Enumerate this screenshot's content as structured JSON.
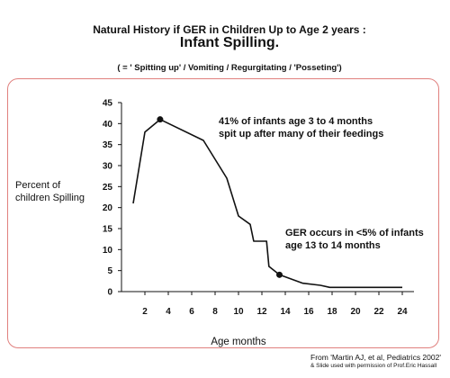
{
  "header": {
    "title_line1": "Natural History if GER in Children Up to Age 2 years :",
    "title_line2": "Infant Spilling.",
    "subtitle": "( = ' Spitting up' / Vomiting / Regurgitating / 'Posseting')"
  },
  "credit": {
    "line1": "From 'Martin AJ, et al, Pediatrics 2002'",
    "line2": "& Slide used with permission of Prof.Eric Hassall"
  },
  "chart_data": {
    "type": "line",
    "title": "",
    "ylabel_line1": "Percent of",
    "ylabel_line2": "children Spilling",
    "xlabel": "Age months",
    "xlim": [
      0,
      25
    ],
    "ylim": [
      0,
      45
    ],
    "xticks": [
      2,
      4,
      6,
      8,
      10,
      12,
      14,
      16,
      18,
      20,
      22,
      24
    ],
    "yticks": [
      0,
      5,
      10,
      15,
      20,
      25,
      30,
      35,
      40,
      45
    ],
    "grid": false,
    "series": [
      {
        "color": "#111111",
        "x": [
          1,
          2,
          3.3,
          7,
          9,
          10,
          11,
          11.3,
          12.4,
          12.6,
          13.5,
          15.5,
          17,
          17.8,
          20,
          24
        ],
        "y": [
          21,
          38,
          41,
          36,
          27,
          18,
          16,
          12,
          12,
          6,
          4,
          2,
          1.5,
          1,
          1,
          1
        ]
      }
    ],
    "highlight_points": [
      {
        "x": 3.3,
        "y": 41
      },
      {
        "x": 13.5,
        "y": 4
      }
    ],
    "annotations": [
      {
        "line1": "41% of infants age 3 to 4 months",
        "line2": "spit up after many of their feedings"
      },
      {
        "line1": "GER occurs in <5% of infants",
        "line2": "age 13 to 14 months"
      }
    ]
  }
}
